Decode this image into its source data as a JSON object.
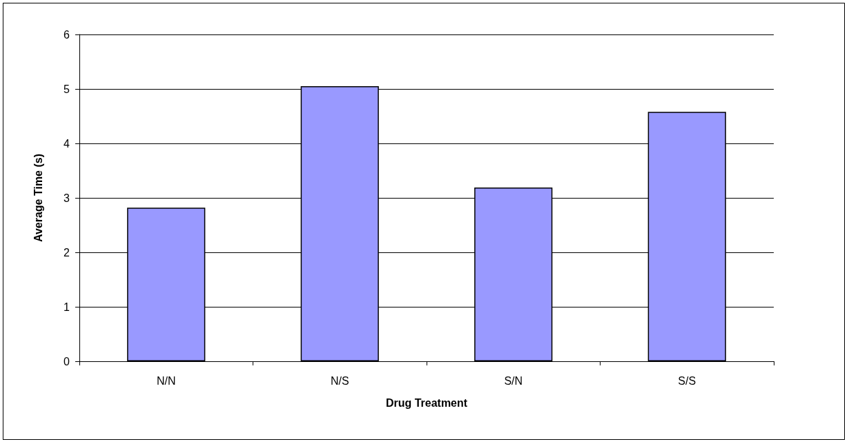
{
  "chart_data": {
    "type": "bar",
    "xlabel": "Drug Treatment",
    "ylabel": "Average Time (s)",
    "categories": [
      "N/N",
      "N/S",
      "S/N",
      "S/S"
    ],
    "values": [
      2.82,
      5.05,
      3.19,
      4.58
    ],
    "color": "#9999ff",
    "ylim": [
      0,
      6
    ],
    "yticks": [
      0,
      1,
      2,
      3,
      4,
      5,
      6
    ],
    "grid": "y"
  }
}
